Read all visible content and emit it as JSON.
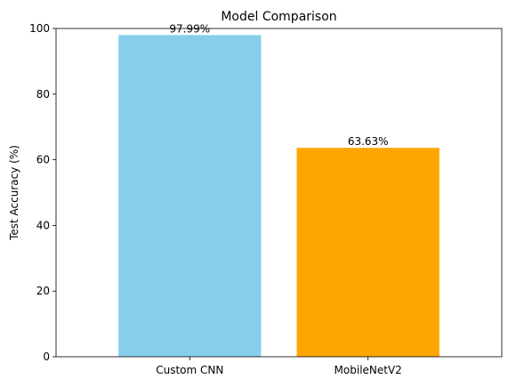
{
  "chart_data": {
    "type": "bar",
    "title": "Model Comparison",
    "xlabel": "",
    "ylabel": "Test Accuracy (%)",
    "categories": [
      "Custom CNN",
      "MobileNetV2"
    ],
    "values": [
      97.99,
      63.63
    ],
    "data_labels": [
      "97.99%",
      "63.63%"
    ],
    "colors": [
      "#87ceeb",
      "#ffa500"
    ],
    "ylim": [
      0,
      100
    ],
    "yticks": [
      0,
      20,
      40,
      60,
      80,
      100
    ],
    "ytick_labels": [
      "0",
      "20",
      "40",
      "60",
      "80",
      "100"
    ],
    "grid": false,
    "legend": "none"
  }
}
